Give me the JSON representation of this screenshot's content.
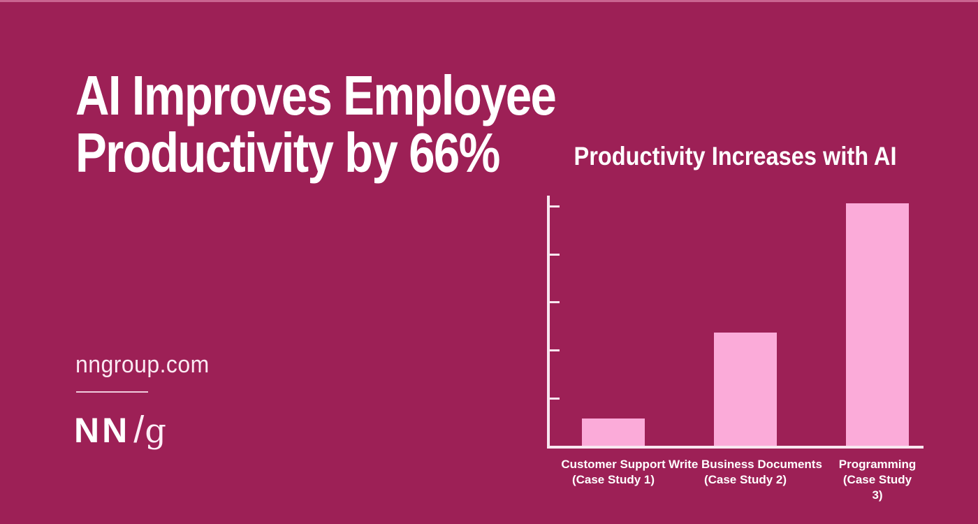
{
  "page": {
    "background_color": "#9d2056",
    "text_color": "#ffffff"
  },
  "headline": {
    "line1": "AI Improves Employee",
    "line2": "Productivity by 66%"
  },
  "footer": {
    "website": "nngroup.com",
    "logo": {
      "nn": "NN",
      "slash": "/",
      "g": "g"
    }
  },
  "chart_data": {
    "type": "bar",
    "title": "Productivity Increases with AI",
    "categories": [
      "Customer Support\n(Case Study 1)",
      "Write Business Documents\n(Case Study 2)",
      "Programming\n(Case Study 3)"
    ],
    "values": [
      14,
      59,
      126
    ],
    "values_note": "estimated from bar heights; y-axis has unlabeled ticks",
    "xlabel": "",
    "ylabel": "",
    "ylim": [
      0,
      130
    ],
    "yticks": [
      25,
      50,
      75,
      100,
      125
    ],
    "ytick_labels_visible": false,
    "grid": false,
    "legend": false,
    "bar_color": "#fbabd9",
    "axis_color": "#f8e7f0"
  }
}
